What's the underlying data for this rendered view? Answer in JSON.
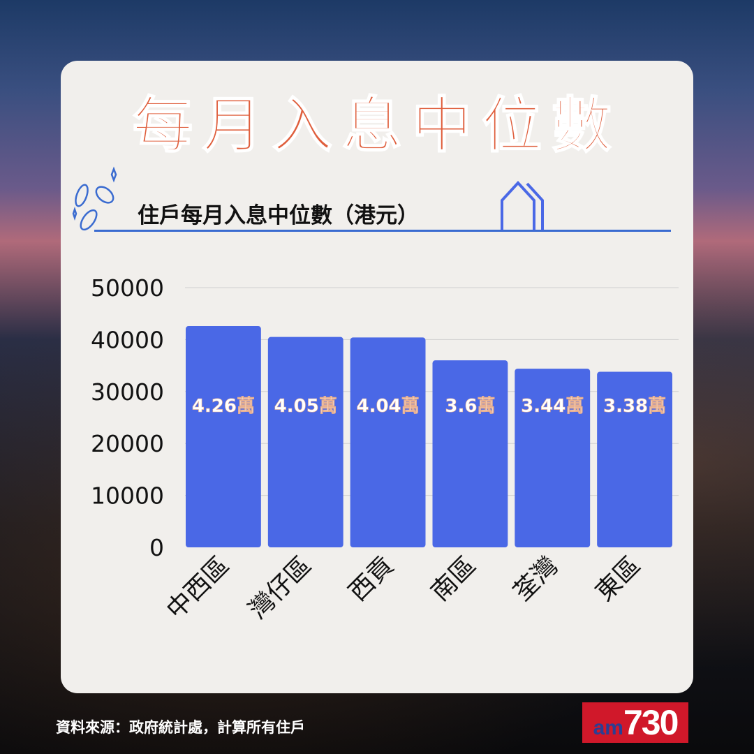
{
  "header": {
    "title": "每月入息中位數"
  },
  "footer": {
    "source": "資料來源：政府統計處，計算所有住戶",
    "logo": "am730"
  },
  "colors": {
    "bar": "#4a68e6",
    "title": "#df5e3c",
    "rule": "#3a6bd0"
  },
  "chart_data": {
    "type": "bar",
    "title": "住戶每月入息中位數（港元）",
    "categories": [
      "中西區",
      "灣仔區",
      "西貢",
      "南區",
      "荃灣",
      "東區"
    ],
    "values": [
      42600,
      40500,
      40400,
      36000,
      34400,
      33800
    ],
    "data_labels": [
      "4.26萬",
      "4.05萬",
      "4.04萬",
      "3.6萬",
      "3.44萬",
      "3.38萬"
    ],
    "ylim": [
      0,
      50000
    ],
    "yticks": [
      "0",
      "10000",
      "20000",
      "30000",
      "40000",
      "50000"
    ],
    "grid": true,
    "legend": "none"
  }
}
